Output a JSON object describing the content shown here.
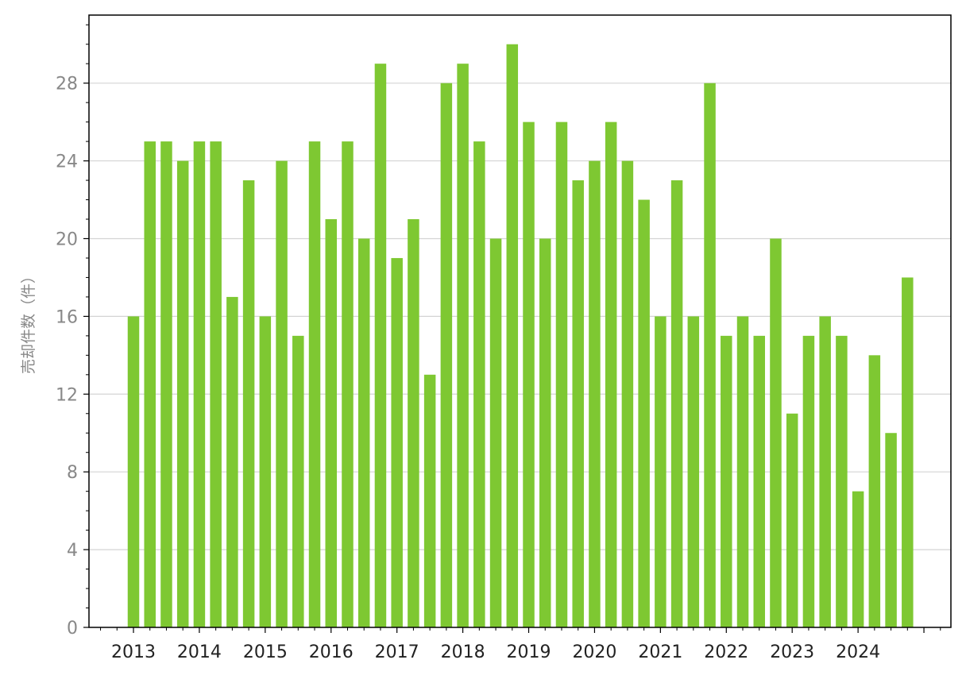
{
  "chart_data": {
    "type": "bar",
    "ylabel": "売却件数（件）",
    "xlabel": "",
    "title": "",
    "ylim": [
      0,
      31.5
    ],
    "yticks": [
      0,
      4,
      8,
      12,
      16,
      20,
      24,
      28
    ],
    "year_labels": [
      "2013",
      "2014",
      "2015",
      "2016",
      "2017",
      "2018",
      "2019",
      "2020",
      "2021",
      "2022",
      "2023",
      "2024"
    ],
    "grid": "y-major",
    "bar_color": "#7ec832",
    "values": [
      16,
      25,
      25,
      24,
      25,
      25,
      17,
      23,
      16,
      24,
      15,
      25,
      21,
      25,
      20,
      29,
      19,
      21,
      13,
      28,
      29,
      25,
      20,
      30,
      26,
      20,
      26,
      23,
      24,
      26,
      24,
      22,
      16,
      23,
      16,
      28,
      15,
      16,
      15,
      20,
      11,
      15,
      16,
      15,
      7,
      14,
      10,
      18
    ]
  }
}
